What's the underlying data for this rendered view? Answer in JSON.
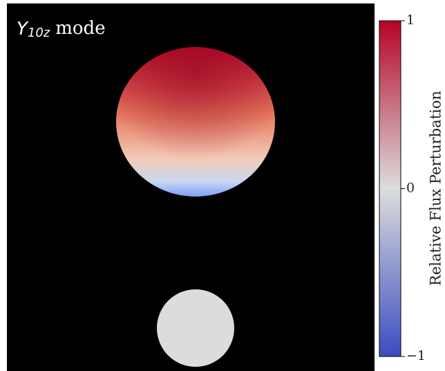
{
  "chart_data": {
    "type": "image",
    "title": {
      "symbol": "Y",
      "subscript": "10z",
      "text": "mode"
    },
    "colorbar": {
      "label": "Relative Flux Perturbation",
      "clim": [
        -1,
        1
      ],
      "ticks": [
        {
          "value": -1,
          "label": "−1"
        },
        0,
        1
      ],
      "colors": [
        "#3b4cc0",
        "#dddddd",
        "#b40426"
      ]
    }
  }
}
